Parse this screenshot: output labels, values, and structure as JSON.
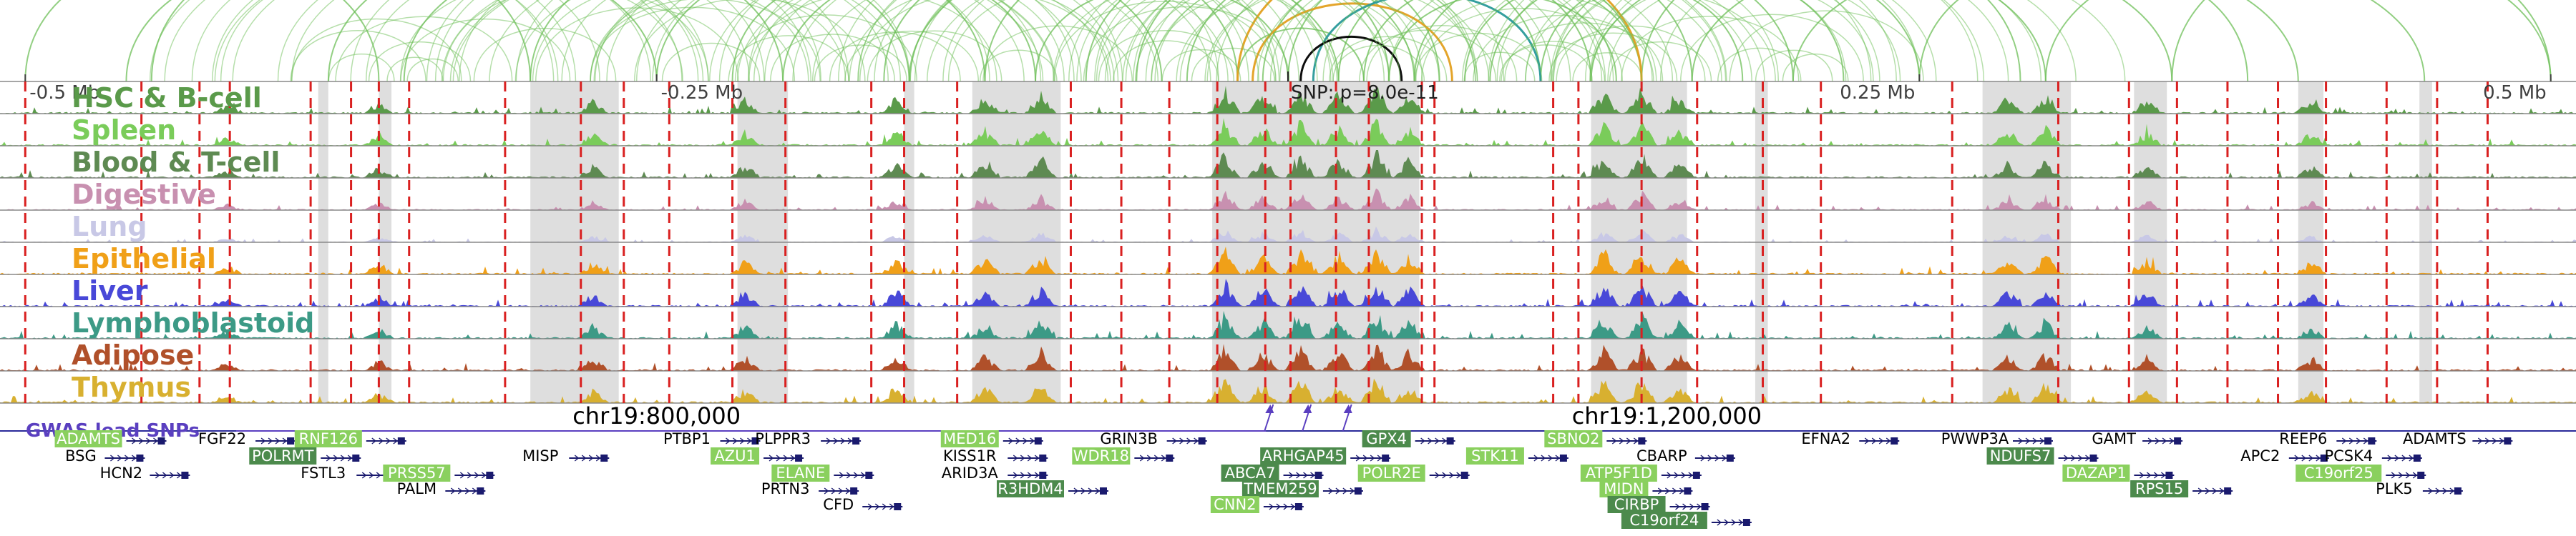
{
  "chart_data": {
    "type": "genome_browser",
    "top_axis": {
      "ticks": [
        {
          "pos": -0.5,
          "label": "-0.5 Mb"
        },
        {
          "pos": -0.25,
          "label": "-0.25 Mb"
        },
        {
          "pos": 0.25,
          "label": "0.25 Mb"
        },
        {
          "pos": 0.5,
          "label": "0.5 Mb"
        }
      ],
      "range": [
        -0.51,
        0.51
      ]
    },
    "snp_label": "SNP: p=8.0e-11",
    "snp_pos_mb": 0.0,
    "colors": {
      "snp_line": "#d92020",
      "shade": "#d8d8d8",
      "gwas": "#5a3fc0",
      "arc_green": "#6dbf58",
      "arc_orange": "#e3a020",
      "arc_black": "#000000",
      "gene_body": "#1a1a6e"
    },
    "tracks": [
      {
        "label": "HSC & B-cell",
        "color": "#5a9a4a"
      },
      {
        "label": "Spleen",
        "color": "#7acc5a"
      },
      {
        "label": "Blood & T-cell",
        "color": "#5e8a52"
      },
      {
        "label": "Digestive",
        "color": "#c890b0"
      },
      {
        "label": "Lung",
        "color": "#c8c8e6"
      },
      {
        "label": "Epithelial",
        "color": "#f0a018"
      },
      {
        "label": "Liver",
        "color": "#4848d8"
      },
      {
        "label": "Lymphoblastoid",
        "color": "#3c9a86"
      },
      {
        "label": "Adipose",
        "color": "#b0502a"
      },
      {
        "label": "Thymus",
        "color": "#d8b030"
      }
    ],
    "chrom_ticks": [
      {
        "pos": -0.25,
        "label": "chr19:800,000"
      },
      {
        "pos": 0.15,
        "label": "chr19:1,200,000"
      }
    ],
    "gwas_label": "GWAS lead SNPs",
    "gwas_snps": [
      -0.007,
      0.008,
      0.024
    ],
    "genes": [
      {
        "name": "ADAMTS",
        "pos": -0.475,
        "row": 0,
        "highlight": "light"
      },
      {
        "name": "BSG",
        "pos": -0.478,
        "row": 1,
        "highlight": "none"
      },
      {
        "name": "HCN2",
        "pos": -0.462,
        "row": 2,
        "highlight": "none"
      },
      {
        "name": "FGF22",
        "pos": -0.422,
        "row": 0,
        "highlight": "none"
      },
      {
        "name": "RNF126",
        "pos": -0.38,
        "row": 0,
        "highlight": "light"
      },
      {
        "name": "POLRMT",
        "pos": -0.398,
        "row": 1,
        "highlight": "dark"
      },
      {
        "name": "FSTL3",
        "pos": -0.382,
        "row": 2,
        "highlight": "none"
      },
      {
        "name": "PRSS57",
        "pos": -0.345,
        "row": 2,
        "highlight": "light"
      },
      {
        "name": "PALM",
        "pos": -0.345,
        "row": 3,
        "highlight": "none"
      },
      {
        "name": "MISP",
        "pos": -0.296,
        "row": 1,
        "highlight": "none"
      },
      {
        "name": "PTBP1",
        "pos": -0.238,
        "row": 0,
        "highlight": "none"
      },
      {
        "name": "PLPPR3",
        "pos": -0.2,
        "row": 0,
        "highlight": "none"
      },
      {
        "name": "AZU1",
        "pos": -0.219,
        "row": 1,
        "highlight": "light"
      },
      {
        "name": "ELANE",
        "pos": -0.193,
        "row": 2,
        "highlight": "light"
      },
      {
        "name": "PRTN3",
        "pos": -0.199,
        "row": 3,
        "highlight": "none"
      },
      {
        "name": "CFD",
        "pos": -0.178,
        "row": 4,
        "highlight": "none"
      },
      {
        "name": "MED16",
        "pos": -0.126,
        "row": 0,
        "highlight": "light"
      },
      {
        "name": "KISS1R",
        "pos": -0.126,
        "row": 1,
        "highlight": "none"
      },
      {
        "name": "ARID3A",
        "pos": -0.126,
        "row": 2,
        "highlight": "none"
      },
      {
        "name": "R3HDM4",
        "pos": -0.102,
        "row": 3,
        "highlight": "dark"
      },
      {
        "name": "GRIN3B",
        "pos": -0.063,
        "row": 0,
        "highlight": "none"
      },
      {
        "name": "WDR18",
        "pos": -0.074,
        "row": 1,
        "highlight": "light"
      },
      {
        "name": "ARHGAP45",
        "pos": 0.006,
        "row": 1,
        "highlight": "dark"
      },
      {
        "name": "ABCA7",
        "pos": -0.015,
        "row": 2,
        "highlight": "dark"
      },
      {
        "name": "TMEM259",
        "pos": -0.003,
        "row": 3,
        "highlight": "dark"
      },
      {
        "name": "CNN2",
        "pos": -0.021,
        "row": 4,
        "highlight": "light"
      },
      {
        "name": "GPX4",
        "pos": 0.039,
        "row": 0,
        "highlight": "dark"
      },
      {
        "name": "POLR2E",
        "pos": 0.041,
        "row": 2,
        "highlight": "light"
      },
      {
        "name": "SBNO2",
        "pos": 0.113,
        "row": 0,
        "highlight": "light"
      },
      {
        "name": "STK11",
        "pos": 0.082,
        "row": 1,
        "highlight": "light"
      },
      {
        "name": "CBARP",
        "pos": 0.148,
        "row": 1,
        "highlight": "none"
      },
      {
        "name": "ATP5F1D",
        "pos": 0.131,
        "row": 2,
        "highlight": "light"
      },
      {
        "name": "MIDN",
        "pos": 0.133,
        "row": 3,
        "highlight": "light"
      },
      {
        "name": "CIRBP",
        "pos": 0.138,
        "row": 4,
        "highlight": "dark"
      },
      {
        "name": "C19orf24",
        "pos": 0.149,
        "row": 5,
        "highlight": "dark"
      },
      {
        "name": "EFNA2",
        "pos": 0.213,
        "row": 0,
        "highlight": "none"
      },
      {
        "name": "PWWP3A",
        "pos": 0.272,
        "row": 0,
        "highlight": "none"
      },
      {
        "name": "NDUFS7",
        "pos": 0.29,
        "row": 1,
        "highlight": "dark"
      },
      {
        "name": "GAMT",
        "pos": 0.327,
        "row": 0,
        "highlight": "none"
      },
      {
        "name": "DAZAP1",
        "pos": 0.32,
        "row": 2,
        "highlight": "light"
      },
      {
        "name": "RPS15",
        "pos": 0.345,
        "row": 3,
        "highlight": "dark"
      },
      {
        "name": "APC2",
        "pos": 0.385,
        "row": 1,
        "highlight": "none"
      },
      {
        "name": "REEP6",
        "pos": 0.402,
        "row": 0,
        "highlight": "none"
      },
      {
        "name": "PCSK4",
        "pos": 0.42,
        "row": 1,
        "highlight": "none"
      },
      {
        "name": "C19orf25",
        "pos": 0.416,
        "row": 2,
        "highlight": "light"
      },
      {
        "name": "ADAMTS",
        "pos": 0.454,
        "row": 0,
        "highlight": "none"
      },
      {
        "name": "PLK5",
        "pos": 0.438,
        "row": 3,
        "highlight": "none"
      }
    ],
    "shaded_regions": [
      [
        -0.384,
        -0.38
      ],
      [
        -0.36,
        -0.355
      ],
      [
        -0.3,
        -0.265
      ],
      [
        -0.218,
        -0.198
      ],
      [
        -0.152,
        -0.148
      ],
      [
        -0.125,
        -0.09
      ],
      [
        -0.03,
        0.052
      ],
      [
        0.12,
        0.158
      ],
      [
        0.185,
        0.19
      ],
      [
        0.275,
        0.31
      ],
      [
        0.335,
        0.348
      ],
      [
        0.4,
        0.41
      ],
      [
        0.448,
        0.453
      ]
    ],
    "snp_lines": [
      -0.5,
      -0.454,
      -0.431,
      -0.419,
      -0.387,
      -0.371,
      -0.36,
      -0.348,
      -0.31,
      -0.28,
      -0.263,
      -0.245,
      -0.22,
      -0.199,
      -0.165,
      -0.152,
      -0.131,
      -0.086,
      -0.066,
      -0.047,
      -0.028,
      -0.009,
      0.001,
      0.019,
      0.032,
      0.053,
      0.058,
      0.105,
      0.115,
      0.14,
      0.162,
      0.188,
      0.211,
      0.263,
      0.305,
      0.333,
      0.352,
      0.372,
      0.392,
      0.411,
      0.435,
      0.455,
      0.475
    ],
    "peaks": [
      [
        -0.275,
        0.45
      ],
      [
        -0.215,
        0.5
      ],
      [
        -0.155,
        0.55
      ],
      [
        -0.12,
        0.6
      ],
      [
        -0.098,
        0.7
      ],
      [
        -0.025,
        0.9
      ],
      [
        -0.01,
        0.7
      ],
      [
        0.005,
        0.85
      ],
      [
        0.02,
        0.75
      ],
      [
        0.035,
        0.95
      ],
      [
        0.048,
        0.7
      ],
      [
        0.125,
        0.8
      ],
      [
        0.14,
        0.9
      ],
      [
        0.155,
        0.6
      ],
      [
        0.285,
        0.55
      ],
      [
        0.3,
        0.65
      ],
      [
        0.34,
        0.5
      ],
      [
        0.405,
        0.45
      ],
      [
        -0.36,
        0.35
      ],
      [
        -0.42,
        0.3
      ]
    ],
    "arcs": [
      [
        -0.5,
        -0.36,
        "green"
      ],
      [
        -0.45,
        -0.3,
        "green"
      ],
      [
        -0.38,
        -0.2,
        "green"
      ],
      [
        -0.3,
        -0.12,
        "green"
      ],
      [
        -0.25,
        -0.05,
        "green"
      ],
      [
        -0.2,
        0.02,
        "green"
      ],
      [
        -0.15,
        0.05,
        "green"
      ],
      [
        -0.12,
        0.04,
        "green"
      ],
      [
        -0.1,
        0.0,
        "green"
      ],
      [
        -0.08,
        0.06,
        "green"
      ],
      [
        -0.06,
        0.1,
        "green"
      ],
      [
        -0.04,
        0.14,
        "green"
      ],
      [
        -0.02,
        0.03,
        "green"
      ],
      [
        -0.01,
        0.12,
        "green"
      ],
      [
        0.0,
        0.16,
        "green"
      ],
      [
        0.02,
        0.2,
        "green"
      ],
      [
        0.03,
        0.14,
        "green"
      ],
      [
        0.05,
        0.25,
        "green"
      ],
      [
        0.08,
        0.3,
        "green"
      ],
      [
        0.1,
        0.22,
        "green"
      ],
      [
        0.12,
        0.35,
        "green"
      ],
      [
        0.14,
        0.29,
        "green"
      ],
      [
        0.16,
        0.4,
        "green"
      ],
      [
        0.2,
        0.45,
        "green"
      ],
      [
        0.25,
        0.38,
        "green"
      ],
      [
        0.3,
        0.5,
        "green"
      ],
      [
        0.35,
        0.5,
        "green"
      ],
      [
        -0.35,
        -0.15,
        "green"
      ],
      [
        -0.46,
        -0.25,
        "green"
      ],
      [
        -0.22,
        -0.1,
        "green"
      ],
      [
        -0.16,
        -0.02,
        "green"
      ],
      [
        0.04,
        0.13,
        "green"
      ],
      [
        0.07,
        0.18,
        "green"
      ],
      [
        -0.014,
        0.065,
        "orange"
      ],
      [
        -0.02,
        0.14,
        "orange"
      ],
      [
        0.01,
        0.1,
        "teal"
      ],
      [
        0.005,
        0.045,
        "black"
      ]
    ]
  }
}
